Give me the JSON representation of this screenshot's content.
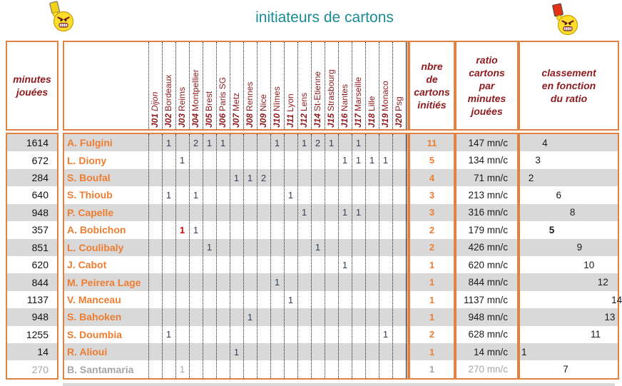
{
  "title": "initiateurs de cartons",
  "icons": {
    "left": "yellow-card-angry-smiley",
    "right": "red-card-angry-smiley"
  },
  "colors": {
    "border_orange": "#DE8344",
    "header_text_maroon": "#8E1A1D",
    "title_teal": "#1A8C96",
    "player_name_orange": "#ED7D31",
    "row_stripe_gray": "#D9D9D9",
    "card_number": "#333F55",
    "red_card_number": "#E60000",
    "grayed_row_text": "#A6A6A6"
  },
  "headers": {
    "minutes": "minutes\njouées",
    "nbre": "nbre\nde\ncartons\ninitiés",
    "ratio": "ratio\ncartons\npar\nminutes\njouées",
    "classement": "classement\nen fonction\ndu ratio"
  },
  "matchdays": [
    {
      "code": "J01",
      "city": "Dijon",
      "city_italic": true
    },
    {
      "code": "J02",
      "city": "Bordeaux"
    },
    {
      "code": "J03",
      "city": "Reims"
    },
    {
      "code": "J04",
      "city": "Montpellier"
    },
    {
      "code": "J05",
      "city": "Brest"
    },
    {
      "code": "J06",
      "city": "Paris SG"
    },
    {
      "code": "J07",
      "city": "Metz"
    },
    {
      "code": "J08",
      "city": "Rennes"
    },
    {
      "code": "J09",
      "city": "Nice"
    },
    {
      "code": "J10",
      "city": "Nîmes"
    },
    {
      "code": "J11",
      "city": "Lyon"
    },
    {
      "code": "J12",
      "city": "Lens"
    },
    {
      "code": "J14",
      "city": "St-Etienne"
    },
    {
      "code": "J15",
      "city": "Strasbourg"
    },
    {
      "code": "J16",
      "city": "Nantes"
    },
    {
      "code": "J17",
      "city": "Marseille"
    },
    {
      "code": "J18",
      "city": "Lille"
    },
    {
      "code": "J19",
      "city": "Monaco"
    },
    {
      "code": "J20",
      "city": "Psg"
    }
  ],
  "players": [
    {
      "minutes": "1614",
      "name": "A. Fulgini",
      "cards": [
        {
          "j": "J02",
          "n": "1"
        },
        {
          "j": "J04",
          "n": "2"
        },
        {
          "j": "J05",
          "n": "1"
        },
        {
          "j": "J06",
          "n": "1"
        },
        {
          "j": "J10",
          "n": "1"
        },
        {
          "j": "J12",
          "n": "1"
        },
        {
          "j": "J14",
          "n": "2"
        },
        {
          "j": "J15",
          "n": "1"
        },
        {
          "j": "J17",
          "n": "1"
        }
      ],
      "nbre": "11",
      "ratio": "147 mn/c",
      "rank": 4
    },
    {
      "minutes": "672",
      "name": "L. Diony",
      "cards": [
        {
          "j": "J03",
          "n": "1"
        },
        {
          "j": "J16",
          "n": "1"
        },
        {
          "j": "J17",
          "n": "1"
        },
        {
          "j": "J18",
          "n": "1"
        },
        {
          "j": "J19",
          "n": "1"
        }
      ],
      "nbre": "5",
      "ratio": "134 mn/c",
      "rank": 3
    },
    {
      "minutes": "284",
      "name": "S. Boufal",
      "cards": [
        {
          "j": "J07",
          "n": "1"
        },
        {
          "j": "J08",
          "n": "1"
        },
        {
          "j": "J09",
          "n": "2"
        }
      ],
      "nbre": "4",
      "ratio": "71 mn/c",
      "rank": 2
    },
    {
      "minutes": "640",
      "name": "S. Thioub",
      "cards": [
        {
          "j": "J02",
          "n": "1"
        },
        {
          "j": "J04",
          "n": "1"
        },
        {
          "j": "J11",
          "n": "1"
        }
      ],
      "nbre": "3",
      "ratio": "213 mn/c",
      "rank": 6
    },
    {
      "minutes": "948",
      "name": "P. Capelle",
      "cards": [
        {
          "j": "J12",
          "n": "1"
        },
        {
          "j": "J16",
          "n": "1"
        },
        {
          "j": "J17",
          "n": "1"
        }
      ],
      "nbre": "3",
      "ratio": "316 mn/c",
      "rank": 8
    },
    {
      "minutes": "357",
      "name": "A. Bobichon",
      "cards": [
        {
          "j": "J03",
          "n": "1",
          "red": true
        },
        {
          "j": "J04",
          "n": "1"
        }
      ],
      "nbre": "2",
      "ratio": "179 mn/c",
      "rank": 5,
      "rank_bold": true
    },
    {
      "minutes": "851",
      "name": "L. Coulibaly",
      "cards": [
        {
          "j": "J05",
          "n": "1"
        },
        {
          "j": "J14",
          "n": "1"
        }
      ],
      "nbre": "2",
      "ratio": "426 mn/c",
      "rank": 9
    },
    {
      "minutes": "620",
      "name": "J. Cabot",
      "cards": [
        {
          "j": "J16",
          "n": "1"
        }
      ],
      "nbre": "1",
      "ratio": "620 mn/c",
      "rank": 10
    },
    {
      "minutes": "844",
      "name": "M. Peirera Lage",
      "cards": [
        {
          "j": "J10",
          "n": "1"
        }
      ],
      "nbre": "1",
      "ratio": "844 mn/c",
      "rank": 12
    },
    {
      "minutes": "1137",
      "name": "V. Manceau",
      "cards": [
        {
          "j": "J11",
          "n": "1"
        }
      ],
      "nbre": "1",
      "ratio": "1137 mn/c",
      "rank": 14
    },
    {
      "minutes": "948",
      "name": "S. Bahoken",
      "cards": [
        {
          "j": "J08",
          "n": "1"
        }
      ],
      "nbre": "1",
      "ratio": "948 mn/c",
      "rank": 13
    },
    {
      "minutes": "1255",
      "name": "S. Doumbia",
      "cards": [
        {
          "j": "J02",
          "n": "1"
        },
        {
          "j": "J19",
          "n": "1"
        }
      ],
      "nbre": "2",
      "ratio": "628 mn/c",
      "rank": 11
    },
    {
      "minutes": "14",
      "name": "R. Alioui",
      "cards": [
        {
          "j": "J07",
          "n": "1"
        }
      ],
      "nbre": "1",
      "ratio": "14 mn/c",
      "rank": 1
    },
    {
      "minutes": "270",
      "name": "B. Santamaria",
      "cards": [
        {
          "j": "J03",
          "n": "1"
        }
      ],
      "nbre": "1",
      "ratio": "270 mn/c",
      "rank": 7,
      "grayed": true
    }
  ]
}
